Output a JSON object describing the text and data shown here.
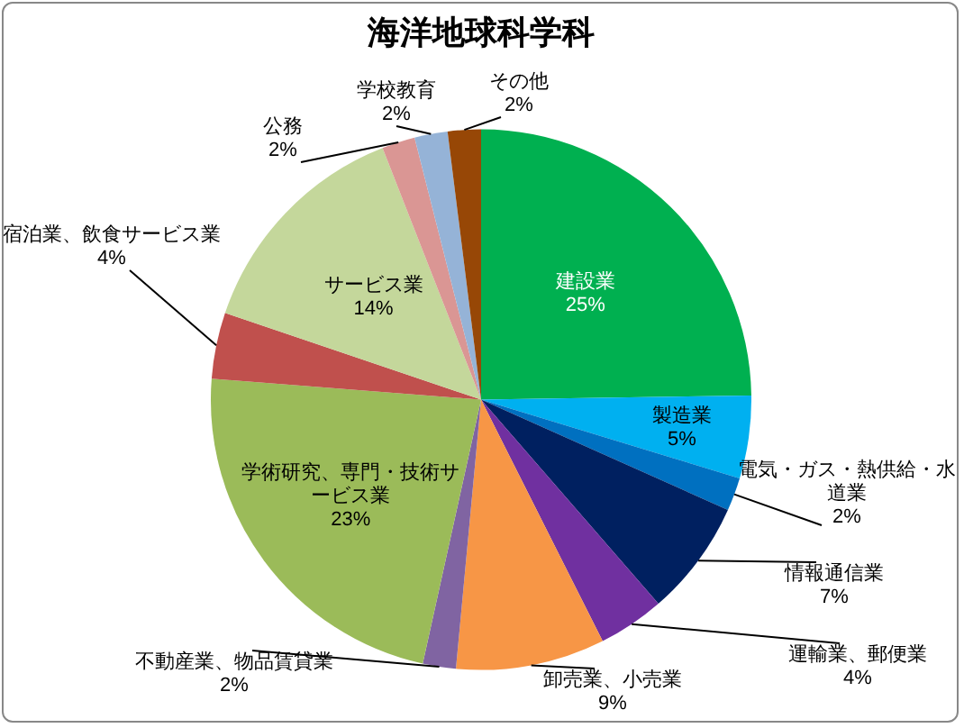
{
  "chart_data": {
    "type": "pie",
    "title": "海洋地球科学科",
    "categories": [
      "建設業",
      "製造業",
      "電気・ガス・熱供給・水道業",
      "情報通信業",
      "運輸業、郵便業",
      "卸売業、小売業",
      "不動産業、物品賃貸業",
      "学術研究、専門・技術サービス業",
      "宿泊業、飲食サービス業",
      "サービス業",
      "公務",
      "学校教育",
      "その他"
    ],
    "values": [
      25,
      5,
      2,
      7,
      4,
      9,
      2,
      23,
      4,
      14,
      2,
      2,
      2
    ],
    "value_labels": [
      "25%",
      "5%",
      "2%",
      "7%",
      "4%",
      "9%",
      "2%",
      "23%",
      "4%",
      "14%",
      "2%",
      "2%",
      "2%"
    ],
    "colors": [
      "#00b050",
      "#00b0f0",
      "#0070c0",
      "#002060",
      "#7030a0",
      "#f79646",
      "#8064a2",
      "#9bbb59",
      "#c0504d",
      "#c4d79b",
      "#da9694",
      "#95b3d7",
      "#974706"
    ],
    "legend": false
  }
}
